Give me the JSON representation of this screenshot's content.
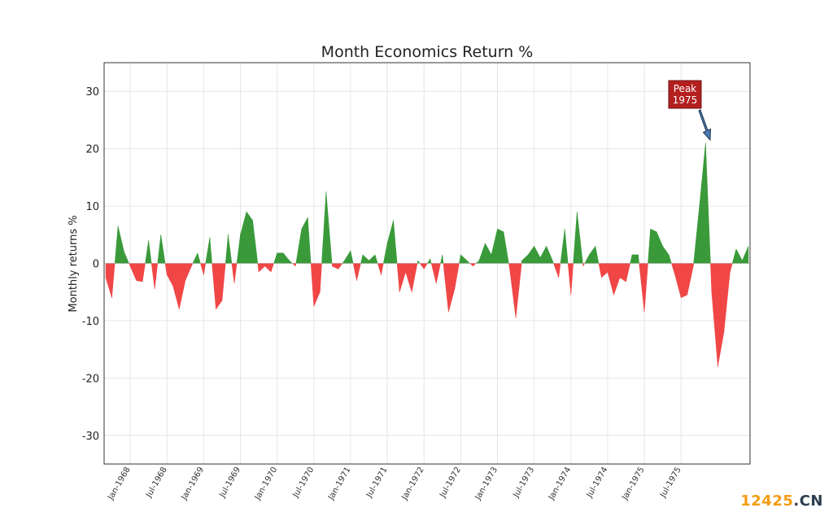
{
  "chart_data": {
    "type": "area",
    "title": "Month Economics Return %",
    "ylabel": "Monthly returns %",
    "xlabel": "",
    "ylim": [
      -35,
      35
    ],
    "yticks": [
      -30,
      -20,
      -10,
      0,
      10,
      20,
      30
    ],
    "grid": true,
    "positive_color": "#3a9a3a",
    "negative_color": "#f04646",
    "x_start": "1967-09",
    "xtick_labels": [
      {
        "month": "1968-01",
        "label": "Jan-1968"
      },
      {
        "month": "1968-07",
        "label": "Jul-1968"
      },
      {
        "month": "1969-01",
        "label": "Jan-1969"
      },
      {
        "month": "1969-07",
        "label": "Jul-1969"
      },
      {
        "month": "1970-01",
        "label": "Jan-1970"
      },
      {
        "month": "1970-07",
        "label": "Jul-1970"
      },
      {
        "month": "1971-01",
        "label": "Jan-1971"
      },
      {
        "month": "1971-07",
        "label": "Jul-1971"
      },
      {
        "month": "1972-01",
        "label": "Jan-1972"
      },
      {
        "month": "1972-07",
        "label": "Jul-1972"
      },
      {
        "month": "1973-01",
        "label": "Jan-1973"
      },
      {
        "month": "1973-07",
        "label": "Jul-1973"
      },
      {
        "month": "1974-01",
        "label": "Jan-1974"
      },
      {
        "month": "1974-07",
        "label": "Jul-1974"
      },
      {
        "month": "1975-01",
        "label": "Jan-1975"
      },
      {
        "month": "1975-07",
        "label": "Jul-1975"
      }
    ],
    "values": [
      -2.5,
      -6,
      6.5,
      2,
      -0.5,
      -3,
      -3.2,
      4,
      -4.5,
      5,
      -2,
      -4,
      -8,
      -3,
      -0.5,
      1.8,
      -2,
      4.5,
      -8,
      -6.5,
      5,
      -3.5,
      5,
      9,
      7.5,
      -1.5,
      -0.5,
      -1.5,
      1.8,
      1.8,
      0.5,
      -0.5,
      6,
      8,
      -7.5,
      -5,
      12.5,
      -0.5,
      -1,
      0.5,
      2.2,
      -3,
      1.5,
      0.5,
      1.5,
      -2,
      3.5,
      7.5,
      -5,
      -1.5,
      -5,
      0.5,
      -1,
      0.8,
      -3.5,
      1.5,
      -8.5,
      -4.5,
      1.5,
      0.5,
      -0.5,
      0.5,
      3.5,
      1.5,
      6,
      5.5,
      -1,
      -9.5,
      0.5,
      1.5,
      3,
      1,
      3,
      0.5,
      -2.5,
      6,
      -5.5,
      9,
      -0.5,
      1.5,
      3,
      -2.5,
      -1.5,
      -5.5,
      -2.5,
      -3.2,
      1.5,
      1.5,
      -8.5,
      6,
      5.5,
      3,
      1.5,
      -2,
      -6,
      -5.5,
      -0.5,
      10,
      21,
      -5,
      -18,
      -12,
      -1.5,
      2.5,
      0.5,
      3
    ],
    "annotation": {
      "line1": "Peak",
      "line2": "1975"
    }
  },
  "watermark": {
    "part1": "12425",
    "part2": ".CN"
  }
}
